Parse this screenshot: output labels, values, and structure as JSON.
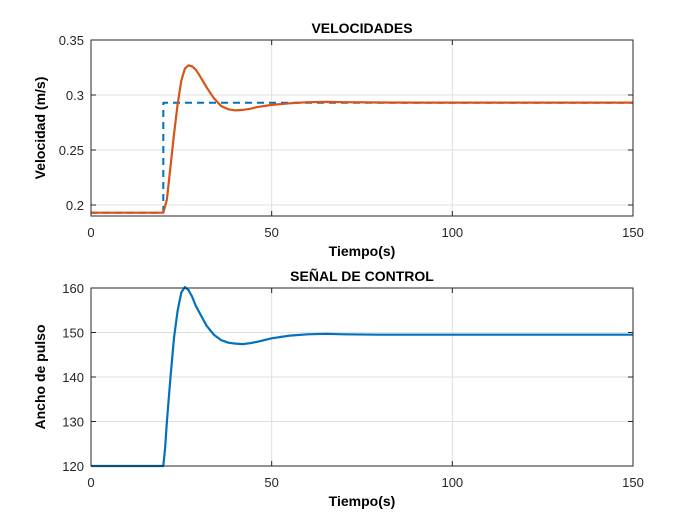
{
  "colors": {
    "series_blue": "#0072BD",
    "series_orange": "#D95319",
    "grid": "#dfdfdf",
    "axis": "#262626"
  },
  "chart_data": [
    {
      "type": "line",
      "title": "VELOCIDADES",
      "xlabel": "Tiempo(s)",
      "ylabel": "Velocidad (m/s)",
      "xlim": [
        0,
        150
      ],
      "ylim": [
        0.19,
        0.35
      ],
      "xticks": [
        0,
        50,
        100,
        150
      ],
      "yticks": [
        0.2,
        0.25,
        0.3,
        0.35
      ],
      "xtick_labels": [
        "0",
        "50",
        "100",
        "150"
      ],
      "ytick_labels": [
        "0.2",
        "0.25",
        "0.3",
        "0.35"
      ],
      "grid": true,
      "legend": "none",
      "series": [
        {
          "style": "dashed",
          "color": "#0072BD",
          "x": [
            0,
            20,
            20,
            150
          ],
          "y": [
            0.193,
            0.193,
            0.293,
            0.293
          ]
        },
        {
          "style": "solid",
          "color": "#D95319",
          "x": [
            0,
            20,
            21,
            22,
            23,
            24,
            25,
            26,
            27,
            28,
            29,
            30,
            32,
            34,
            36,
            38,
            40,
            42,
            44,
            46,
            48,
            50,
            55,
            60,
            65,
            70,
            80,
            90,
            100,
            120,
            150
          ],
          "y": [
            0.193,
            0.193,
            0.205,
            0.235,
            0.265,
            0.292,
            0.313,
            0.324,
            0.327,
            0.326,
            0.323,
            0.318,
            0.307,
            0.297,
            0.29,
            0.287,
            0.286,
            0.2865,
            0.2875,
            0.289,
            0.29,
            0.291,
            0.2925,
            0.2935,
            0.2937,
            0.2935,
            0.2932,
            0.2931,
            0.2931,
            0.2931,
            0.2931
          ]
        }
      ]
    },
    {
      "type": "line",
      "title": "SEÑAL DE CONTROL",
      "xlabel": "Tiempo(s)",
      "ylabel": "Ancho de pulso",
      "xlim": [
        0,
        150
      ],
      "ylim": [
        120,
        160
      ],
      "xticks": [
        0,
        50,
        100,
        150
      ],
      "yticks": [
        120,
        130,
        140,
        150,
        160
      ],
      "xtick_labels": [
        "0",
        "50",
        "100",
        "150"
      ],
      "ytick_labels": [
        "120",
        "130",
        "140",
        "150",
        "160"
      ],
      "grid": true,
      "legend": "none",
      "series": [
        {
          "style": "solid",
          "color": "#0072BD",
          "x": [
            0,
            20,
            20.5,
            21,
            22,
            23,
            24,
            25,
            26,
            27,
            28,
            29,
            30,
            32,
            34,
            36,
            38,
            40,
            42,
            44,
            46,
            48,
            50,
            55,
            60,
            65,
            70,
            80,
            90,
            100,
            120,
            150
          ],
          "y": [
            120,
            120,
            124,
            130,
            140,
            149,
            155,
            159,
            160.2,
            159.5,
            158,
            156,
            154.5,
            151.5,
            149.5,
            148.3,
            147.7,
            147.5,
            147.4,
            147.6,
            147.9,
            148.3,
            148.7,
            149.3,
            149.6,
            149.7,
            149.6,
            149.5,
            149.5,
            149.5,
            149.5,
            149.5
          ]
        }
      ]
    }
  ]
}
